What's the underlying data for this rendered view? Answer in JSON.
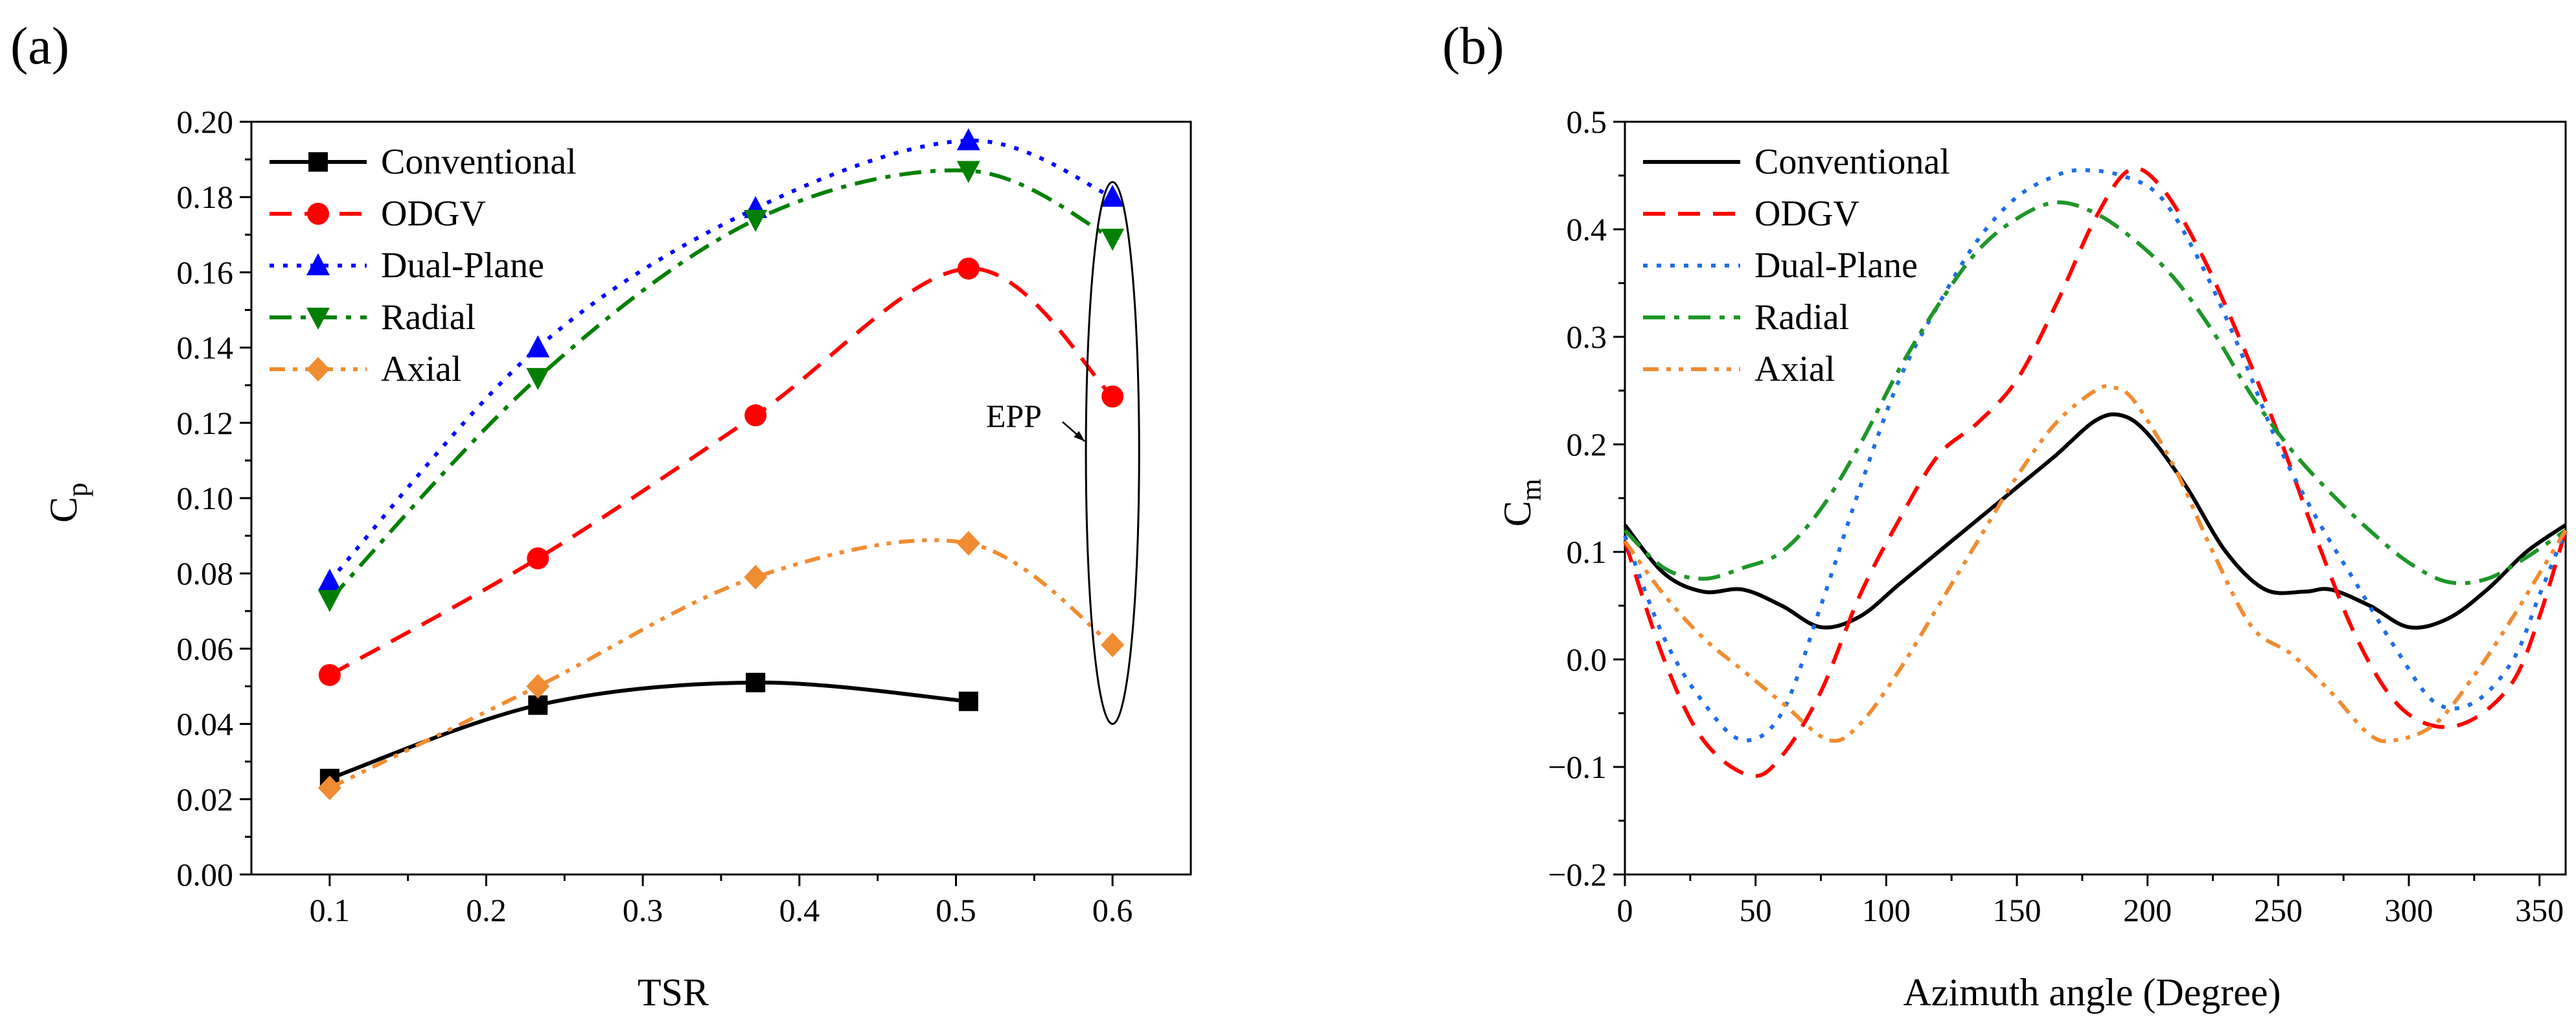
{
  "panels": [
    {
      "label": "(a)",
      "chart_data": {
        "type": "line",
        "xlabel": "TSR",
        "ylabel": "C",
        "ylabel_sub": "p",
        "xlim": [
          0.05,
          0.65
        ],
        "ylim": [
          0.0,
          0.2
        ],
        "xticks": [
          0.1,
          0.2,
          0.3,
          0.4,
          0.5,
          0.6
        ],
        "xtick_labels": [
          "0.1",
          "0.2",
          "0.3",
          "0.4",
          "0.5",
          "0.6"
        ],
        "yticks": [
          0.0,
          0.02,
          0.04,
          0.06,
          0.08,
          0.1,
          0.12,
          0.14,
          0.16,
          0.18,
          0.2
        ],
        "ytick_labels": [
          "0.00",
          "0.02",
          "0.04",
          "0.06",
          "0.08",
          "0.10",
          "0.12",
          "0.14",
          "0.16",
          "0.18",
          "0.20"
        ],
        "legend_position": "top-left",
        "series": [
          {
            "name": "Conventional",
            "color": "#000000",
            "dash": "solid",
            "marker": "square",
            "x": [
              0.1,
              0.233,
              0.372,
              0.508
            ],
            "y": [
              0.0255,
              0.045,
              0.051,
              0.046
            ]
          },
          {
            "name": "ODGV",
            "color": "#ff0000",
            "dash": "dash",
            "marker": "circle",
            "x": [
              0.1,
              0.233,
              0.372,
              0.508,
              0.6
            ],
            "y": [
              0.053,
              0.084,
              0.122,
              0.161,
              0.127
            ]
          },
          {
            "name": "Dual-Plane",
            "color": "#0000ff",
            "dash": "dot",
            "marker": "triangle-up",
            "x": [
              0.1,
              0.233,
              0.372,
              0.508,
              0.6
            ],
            "y": [
              0.078,
              0.14,
              0.177,
              0.195,
              0.18
            ]
          },
          {
            "name": "Radial",
            "color": "#008000",
            "dash": "dashdot",
            "marker": "triangle-down",
            "x": [
              0.1,
              0.233,
              0.372,
              0.508,
              0.6
            ],
            "y": [
              0.073,
              0.132,
              0.174,
              0.187,
              0.169
            ]
          },
          {
            "name": "Axial",
            "color": "#f08c32",
            "dash": "dashdotdot",
            "marker": "diamond",
            "x": [
              0.1,
              0.233,
              0.372,
              0.508,
              0.6
            ],
            "y": [
              0.023,
              0.05,
              0.079,
              0.088,
              0.061
            ]
          }
        ],
        "annotation": {
          "text": "EPP",
          "ellipse_center": [
            0.6,
            0.112
          ],
          "ellipse_radius": [
            0.017,
            0.072
          ],
          "label_at": [
            0.537,
            0.122
          ]
        }
      }
    },
    {
      "label": "(b)",
      "chart_data": {
        "type": "line",
        "xlabel": "Azimuth angle (Degree)",
        "ylabel": "C",
        "ylabel_sub": "m",
        "xlim": [
          0,
          360
        ],
        "ylim": [
          -0.2,
          0.5
        ],
        "xticks": [
          0,
          50,
          100,
          150,
          200,
          250,
          300,
          350
        ],
        "xtick_labels": [
          "0",
          "50",
          "100",
          "150",
          "200",
          "250",
          "300",
          "350"
        ],
        "yticks": [
          -0.2,
          -0.1,
          0.0,
          0.1,
          0.2,
          0.3,
          0.4,
          0.5
        ],
        "ytick_labels": [
          "−0.2",
          "−0.1",
          "0.0",
          "0.1",
          "0.2",
          "0.3",
          "0.4",
          "0.5"
        ],
        "legend_position": "top-left",
        "series": [
          {
            "name": "Conventional",
            "color": "#000000",
            "dash": "solid",
            "x": [
              0,
              15,
              30,
              45,
              60,
              75,
              90,
              105,
              120,
              135,
              150,
              165,
              180,
              190,
              200,
              215,
              230,
              245,
              260,
              270,
              285,
              300,
              315,
              330,
              345,
              360
            ],
            "y": [
              0.125,
              0.08,
              0.063,
              0.065,
              0.05,
              0.03,
              0.04,
              0.07,
              0.1,
              0.13,
              0.16,
              0.19,
              0.222,
              0.227,
              0.21,
              0.16,
              0.1,
              0.065,
              0.063,
              0.065,
              0.05,
              0.03,
              0.038,
              0.065,
              0.1,
              0.125
            ]
          },
          {
            "name": "ODGV",
            "color": "#ff0000",
            "dash": "dash",
            "x": [
              0,
              15,
              30,
              48,
              60,
              75,
              90,
              105,
              120,
              135,
              150,
              165,
              180,
              193,
              205,
              220,
              235,
              250,
              265,
              280,
              295,
              310,
              325,
              340,
              350,
              360
            ],
            "y": [
              0.11,
              0.0,
              -0.075,
              -0.108,
              -0.09,
              -0.03,
              0.06,
              0.13,
              0.19,
              0.22,
              0.26,
              0.33,
              0.41,
              0.455,
              0.44,
              0.38,
              0.3,
              0.21,
              0.11,
              0.02,
              -0.04,
              -0.062,
              -0.055,
              -0.02,
              0.04,
              0.12
            ]
          },
          {
            "name": "Dual-Plane",
            "color": "#1e6ee6",
            "dash": "dot",
            "x": [
              0,
              15,
              30,
              45,
              60,
              75,
              90,
              105,
              120,
              135,
              150,
              165,
              175,
              190,
              205,
              220,
              235,
              250,
              265,
              280,
              295,
              310,
              325,
              340,
              350,
              360
            ],
            "y": [
              0.115,
              0.02,
              -0.04,
              -0.075,
              -0.05,
              0.05,
              0.16,
              0.26,
              0.33,
              0.39,
              0.43,
              0.45,
              0.455,
              0.45,
              0.43,
              0.37,
              0.29,
              0.2,
              0.13,
              0.07,
              0.01,
              -0.04,
              -0.04,
              0.0,
              0.06,
              0.12
            ]
          },
          {
            "name": "Radial",
            "color": "#1e9628",
            "dash": "dashdot",
            "x": [
              0,
              15,
              30,
              45,
              60,
              75,
              90,
              105,
              120,
              135,
              150,
              165,
              180,
              195,
              210,
              225,
              240,
              255,
              270,
              285,
              300,
              315,
              330,
              345,
              360
            ],
            "y": [
              0.12,
              0.085,
              0.075,
              0.085,
              0.1,
              0.14,
              0.2,
              0.27,
              0.33,
              0.38,
              0.41,
              0.425,
              0.415,
              0.39,
              0.355,
              0.305,
              0.245,
              0.195,
              0.155,
              0.12,
              0.09,
              0.072,
              0.075,
              0.095,
              0.12
            ]
          },
          {
            "name": "Axial",
            "color": "#f08c32",
            "dash": "dashdotdot",
            "x": [
              0,
              15,
              30,
              45,
              60,
              78,
              90,
              105,
              120,
              135,
              150,
              165,
              180,
              187,
              195,
              210,
              225,
              240,
              255,
              270,
              285,
              295,
              310,
              325,
              340,
              350,
              360
            ],
            "y": [
              0.11,
              0.06,
              0.02,
              -0.01,
              -0.04,
              -0.075,
              -0.06,
              -0.01,
              0.05,
              0.11,
              0.17,
              0.22,
              0.25,
              0.253,
              0.24,
              0.18,
              0.1,
              0.03,
              0.005,
              -0.03,
              -0.07,
              -0.075,
              -0.06,
              -0.015,
              0.04,
              0.08,
              0.12
            ]
          }
        ]
      }
    }
  ]
}
